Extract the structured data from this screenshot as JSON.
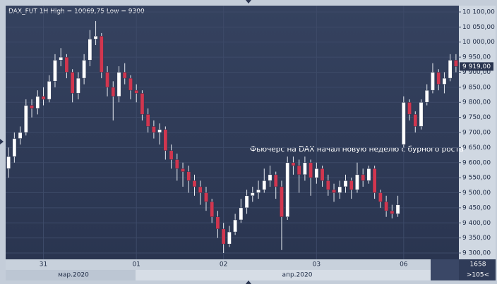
{
  "chart_data": {
    "type": "candlestick",
    "title": "DAX_FUT 1H High = 10069,75 Low = 9300",
    "annotation": "Фьючерс на DAX начал новую неделю с бурного роста",
    "categories": [
      null,
      null,
      null,
      null,
      null,
      null,
      "31",
      null,
      null,
      null,
      null,
      null,
      null,
      null,
      null,
      null,
      null,
      null,
      null,
      null,
      null,
      null,
      "01",
      null,
      null,
      null,
      null,
      null,
      null,
      null,
      null,
      null,
      null,
      null,
      null,
      null,
      null,
      "02",
      null,
      null,
      null,
      null,
      null,
      null,
      null,
      null,
      null,
      null,
      null,
      null,
      null,
      null,
      null,
      "03",
      null,
      null,
      null,
      null,
      null,
      null,
      null,
      null,
      null,
      null,
      null,
      null,
      null,
      null,
      "06",
      null,
      null,
      null,
      null,
      null,
      null,
      null,
      null,
      null
    ],
    "month_labels": [
      "мар.2020",
      "апр.2020"
    ],
    "corner_labels": [
      "1658",
      ">105<"
    ],
    "open": [
      9580,
      9620,
      9680,
      9700,
      9790,
      9780,
      9820,
      9810,
      9870,
      9940,
      9950,
      9900,
      9830,
      9880,
      9940,
      10010,
      10020,
      9900,
      9850,
      9820,
      9900,
      9880,
      9840,
      9830,
      9760,
      9720,
      9700,
      9710,
      9640,
      9610,
      9580,
      9570,
      9540,
      9520,
      9500,
      9470,
      9420,
      9380,
      9330,
      9370,
      9410,
      9450,
      9490,
      9500,
      9510,
      9540,
      9560,
      9520,
      9420,
      9600,
      9590,
      9560,
      9600,
      9550,
      9580,
      9540,
      9510,
      9500,
      9520,
      9540,
      9510,
      9560,
      9540,
      9580,
      9500,
      9470,
      9440,
      9430,
      9660,
      9800,
      9760,
      9720,
      9800,
      9840,
      9900,
      9860,
      9880,
      9940
    ],
    "high": [
      9650,
      9700,
      9720,
      9810,
      9810,
      9840,
      9850,
      9890,
      9960,
      9980,
      9960,
      9910,
      9900,
      9960,
      10040,
      10069.75,
      10030,
      9920,
      9870,
      9920,
      9930,
      9890,
      9860,
      9840,
      9780,
      9740,
      9730,
      9720,
      9660,
      9630,
      9600,
      9590,
      9560,
      9540,
      9520,
      9480,
      9440,
      9400,
      9390,
      9430,
      9480,
      9510,
      9520,
      9540,
      9580,
      9590,
      9570,
      9540,
      9620,
      9620,
      9610,
      9620,
      9610,
      9600,
      9590,
      9560,
      9530,
      9540,
      9560,
      9550,
      9600,
      9580,
      9590,
      9590,
      9510,
      9490,
      9460,
      9490,
      9820,
      9810,
      9770,
      9810,
      9860,
      9930,
      9910,
      9900,
      9960,
      9960
    ],
    "low": [
      9550,
      9600,
      9660,
      9690,
      9750,
      9760,
      9790,
      9800,
      9850,
      9920,
      9880,
      9800,
      9810,
      9860,
      9920,
      9990,
      9880,
      9820,
      9740,
      9800,
      9860,
      9810,
      9800,
      9740,
      9700,
      9680,
      9660,
      9610,
      9580,
      9540,
      9520,
      9500,
      9490,
      9460,
      9440,
      9400,
      9350,
      9300,
      9320,
      9360,
      9400,
      9430,
      9470,
      9480,
      9500,
      9520,
      9480,
      9310,
      9410,
      9560,
      9500,
      9540,
      9490,
      9530,
      9520,
      9490,
      9470,
      9480,
      9500,
      9480,
      9500,
      9520,
      9530,
      9480,
      9450,
      9420,
      9415,
      9420,
      9650,
      9740,
      9700,
      9710,
      9790,
      9830,
      9840,
      9830,
      9870,
      9900
    ],
    "close": [
      9620,
      9680,
      9700,
      9790,
      9780,
      9820,
      9810,
      9870,
      9940,
      9950,
      9900,
      9830,
      9880,
      9940,
      10010,
      10020,
      9900,
      9850,
      9820,
      9900,
      9880,
      9840,
      9830,
      9760,
      9720,
      9700,
      9710,
      9640,
      9610,
      9580,
      9570,
      9540,
      9520,
      9500,
      9470,
      9420,
      9380,
      9330,
      9370,
      9410,
      9450,
      9490,
      9500,
      9510,
      9540,
      9560,
      9520,
      9420,
      9600,
      9590,
      9560,
      9600,
      9550,
      9580,
      9540,
      9510,
      9500,
      9520,
      9540,
      9510,
      9560,
      9540,
      9580,
      9500,
      9470,
      9440,
      9430,
      9460,
      9800,
      9760,
      9720,
      9800,
      9840,
      9900,
      9860,
      9880,
      9940,
      9919
    ],
    "last_price_label": "9 919,00",
    "up_color": "#ffffff",
    "down_color": "#d2364f",
    "wick_color": "#e8ecf2",
    "ylim": [
      9279,
      10121
    ],
    "yticks": [
      {
        "value": 9300,
        "label": "9 300,00"
      },
      {
        "value": 9350,
        "label": "9 350,00"
      },
      {
        "value": 9400,
        "label": "9 400,00"
      },
      {
        "value": 9450,
        "label": "9 450,00"
      },
      {
        "value": 9500,
        "label": "9 500,00"
      },
      {
        "value": 9550,
        "label": "9 550,00"
      },
      {
        "value": 9600,
        "label": "9 600,00"
      },
      {
        "value": 9650,
        "label": "9 650,00"
      },
      {
        "value": 9700,
        "label": "9 700,00"
      },
      {
        "value": 9750,
        "label": "9 750,00"
      },
      {
        "value": 9800,
        "label": "9 800,00"
      },
      {
        "value": 9850,
        "label": "9 850,00"
      },
      {
        "value": 9900,
        "label": "9 900,00"
      },
      {
        "value": 9950,
        "label": "9 950,00"
      },
      {
        "value": 10000,
        "label": "10 000,00"
      },
      {
        "value": 10050,
        "label": "10 050,00"
      },
      {
        "value": 10100,
        "label": "10 100,00"
      }
    ],
    "grid": true
  }
}
